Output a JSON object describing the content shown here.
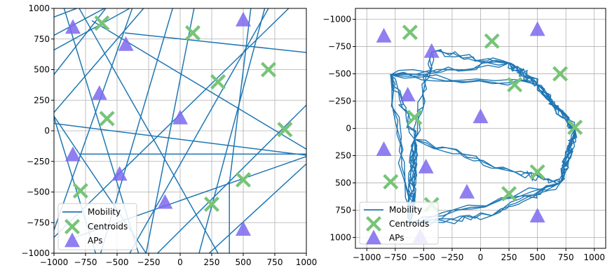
{
  "chart_data": [
    {
      "type": "scatter",
      "title": "",
      "xlabel": "",
      "ylabel": "",
      "xlim": [
        -1000,
        1000
      ],
      "ylim": [
        -1000,
        1000
      ],
      "y_inverted": false,
      "grid": true,
      "legend_position": "lower-left",
      "xticks": [
        -1000,
        -750,
        -500,
        -250,
        0,
        250,
        500,
        750,
        1000
      ],
      "yticks": [
        1000,
        750,
        500,
        250,
        0,
        -250,
        -500,
        -750,
        -1000
      ],
      "xtick_labels": [
        "−1000",
        "−750",
        "−500",
        "−250",
        "0",
        "250",
        "500",
        "750",
        "1000"
      ],
      "ytick_labels": [
        "1000",
        "750",
        "500",
        "250",
        "0",
        "−250",
        "−500",
        "−750",
        "−1000"
      ],
      "series": [
        {
          "name": "Mobility",
          "kind": "segments",
          "color": "#1f77b4",
          "segments": [
            [
              [
                -1000,
                930
              ],
              [
                -820,
                1000
              ]
            ],
            [
              [
                -1000,
                780
              ],
              [
                -600,
                1000
              ]
            ],
            [
              [
                -1000,
                660
              ],
              [
                -400,
                1000
              ]
            ],
            [
              [
                -1000,
                460
              ],
              [
                -590,
                1000
              ]
            ],
            [
              [
                -1000,
                150
              ],
              [
                -290,
                1000
              ]
            ],
            [
              [
                -1000,
                120
              ],
              [
                -270,
                -1000
              ]
            ],
            [
              [
                -1000,
                110
              ],
              [
                -670,
                -1000
              ]
            ],
            [
              [
                -1000,
                60
              ],
              [
                1000,
                -200
              ]
            ],
            [
              [
                -1000,
                -810
              ],
              [
                -380,
                1000
              ]
            ],
            [
              [
                -1000,
                -870
              ],
              [
                860,
                1000
              ]
            ],
            [
              [
                -920,
                1000
              ],
              [
                -330,
                -1000
              ]
            ],
            [
              [
                -800,
                1000
              ],
              [
                300,
                -1000
              ]
            ],
            [
              [
                -700,
                900
              ],
              [
                1000,
                -150
              ]
            ],
            [
              [
                -440,
                800
              ],
              [
                1000,
                640
              ]
            ],
            [
              [
                -800,
                -190
              ],
              [
                1000,
                -190
              ]
            ],
            [
              [
                -860,
                -880
              ],
              [
                1000,
                -210
              ]
            ],
            [
              [
                -270,
                -1000
              ],
              [
                110,
                1000
              ]
            ],
            [
              [
                -400,
                -1000
              ],
              [
                700,
                1000
              ]
            ],
            [
              [
                -180,
                -1000
              ],
              [
                1000,
                210
              ]
            ],
            [
              [
                150,
                -1000
              ],
              [
                670,
                1000
              ]
            ],
            [
              [
                230,
                -1000
              ],
              [
                1000,
                -270
              ]
            ],
            [
              [
                390,
                -1000
              ],
              [
                390,
                -430
              ]
            ],
            [
              [
                390,
                -430
              ],
              [
                560,
                1000
              ]
            ],
            [
              [
                -630,
                -1000
              ],
              [
                -60,
                1000
              ]
            ]
          ]
        },
        {
          "name": "Centroids",
          "kind": "marker",
          "marker": "X",
          "color": "#77c477",
          "points": [
            [
              -620,
              880
            ],
            [
              100,
              800
            ],
            [
              300,
              400
            ],
            [
              700,
              500
            ],
            [
              -580,
              100
            ],
            [
              830,
              10
            ],
            [
              500,
              -400
            ],
            [
              250,
              -600
            ],
            [
              -790,
              -490
            ]
          ]
        },
        {
          "name": "APs",
          "kind": "marker",
          "marker": "triangle",
          "color": "#7b68ee",
          "points": [
            [
              -850,
              840
            ],
            [
              -430,
              700
            ],
            [
              500,
              900
            ],
            [
              -640,
              300
            ],
            [
              0,
              100
            ],
            [
              -850,
              -200
            ],
            [
              -480,
              -360
            ],
            [
              -120,
              -590
            ],
            [
              500,
              -810
            ]
          ]
        }
      ]
    },
    {
      "type": "scatter",
      "title": "",
      "xlabel": "",
      "ylabel": "",
      "xlim": [
        -1100,
        1100
      ],
      "ylim": [
        -1100,
        1100
      ],
      "y_inverted": true,
      "grid": true,
      "legend_position": "lower-left",
      "xticks": [
        -1000,
        -750,
        -500,
        -250,
        0,
        250,
        500,
        750,
        1000
      ],
      "yticks": [
        1000,
        750,
        500,
        250,
        0,
        -250,
        -500,
        -750,
        -1000
      ],
      "xtick_labels": [
        "−1000",
        "−750",
        "−500",
        "−250",
        "0",
        "250",
        "500",
        "750",
        "1000"
      ],
      "ytick_labels": [
        "1000",
        "750",
        "500",
        "250",
        "0",
        "−250",
        "−500",
        "−750",
        "−1000"
      ],
      "series": [
        {
          "name": "Mobility",
          "kind": "loops",
          "color": "#1f77b4",
          "waypoint_loops": [
            [
              [
                -620,
                880
              ],
              [
                100,
                800
              ],
              [
                700,
                500
              ],
              [
                830,
                10
              ],
              [
                500,
                -400
              ],
              [
                250,
                -600
              ],
              [
                -790,
                -490
              ],
              [
                -580,
                100
              ],
              [
                -620,
                880
              ]
            ],
            [
              [
                -620,
                880
              ],
              [
                -580,
                100
              ],
              [
                300,
                400
              ],
              [
                700,
                500
              ],
              [
                830,
                10
              ],
              [
                500,
                -400
              ],
              [
                -790,
                -490
              ],
              [
                -620,
                880
              ]
            ],
            [
              [
                -580,
                100
              ],
              [
                -430,
                -700
              ],
              [
                250,
                -600
              ],
              [
                500,
                -400
              ],
              [
                830,
                10
              ],
              [
                700,
                500
              ],
              [
                -620,
                880
              ],
              [
                -580,
                100
              ]
            ]
          ]
        },
        {
          "name": "Centroids",
          "kind": "marker",
          "marker": "X",
          "color": "#77c477",
          "points": [
            [
              -620,
              -880
            ],
            [
              100,
              -800
            ],
            [
              300,
              -400
            ],
            [
              700,
              -500
            ],
            [
              -580,
              -100
            ],
            [
              830,
              -10
            ],
            [
              500,
              400
            ],
            [
              250,
              600
            ],
            [
              -790,
              490
            ],
            [
              -430,
              700
            ]
          ]
        },
        {
          "name": "APs",
          "kind": "marker",
          "marker": "triangle",
          "color": "#7b68ee",
          "points": [
            [
              -850,
              -840
            ],
            [
              -430,
              -700
            ],
            [
              500,
              -900
            ],
            [
              -640,
              -300
            ],
            [
              0,
              -100
            ],
            [
              -850,
              200
            ],
            [
              -480,
              360
            ],
            [
              -120,
              590
            ],
            [
              500,
              810
            ],
            [
              -530,
              1000
            ]
          ]
        }
      ]
    }
  ],
  "legend": {
    "mobility": "Mobility",
    "centroids": "Centroids",
    "aps": "APs"
  },
  "colors": {
    "mobility": "#1f77b4",
    "centroids": "#77c477",
    "aps": "#7b68ee",
    "grid": "#b0b0b0"
  }
}
